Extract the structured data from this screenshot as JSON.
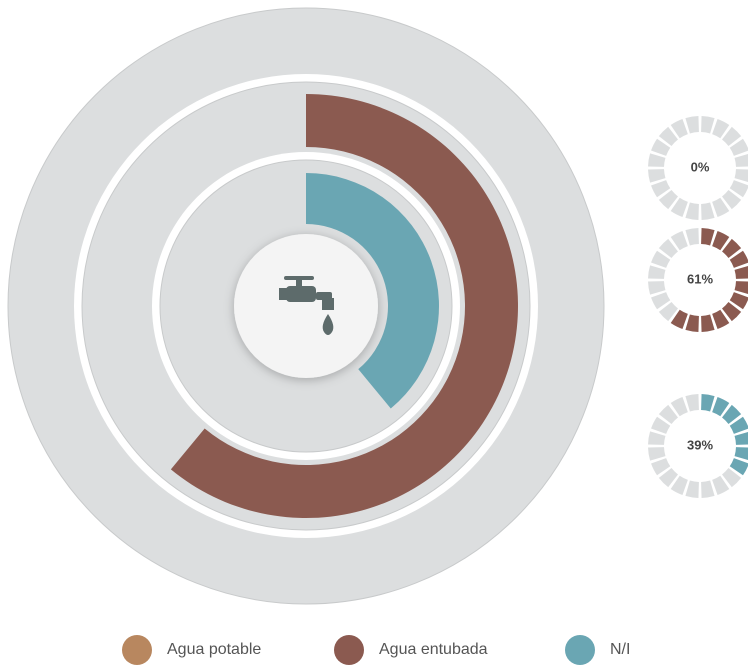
{
  "chart_data": {
    "type": "radial-bar",
    "series": [
      {
        "name": "Agua potable",
        "color": "#b8875f",
        "values": [
          0
        ],
        "value_labels": [
          "0%"
        ]
      },
      {
        "name": "Agua entubada",
        "color": "#8b5a50",
        "values": [
          61
        ],
        "value_labels": [
          "61%"
        ]
      },
      {
        "name": "N/I",
        "color": "#6aa6b3",
        "values": [
          39
        ],
        "value_labels": [
          "39%"
        ]
      }
    ],
    "ylim": [
      0,
      100
    ]
  }
}
